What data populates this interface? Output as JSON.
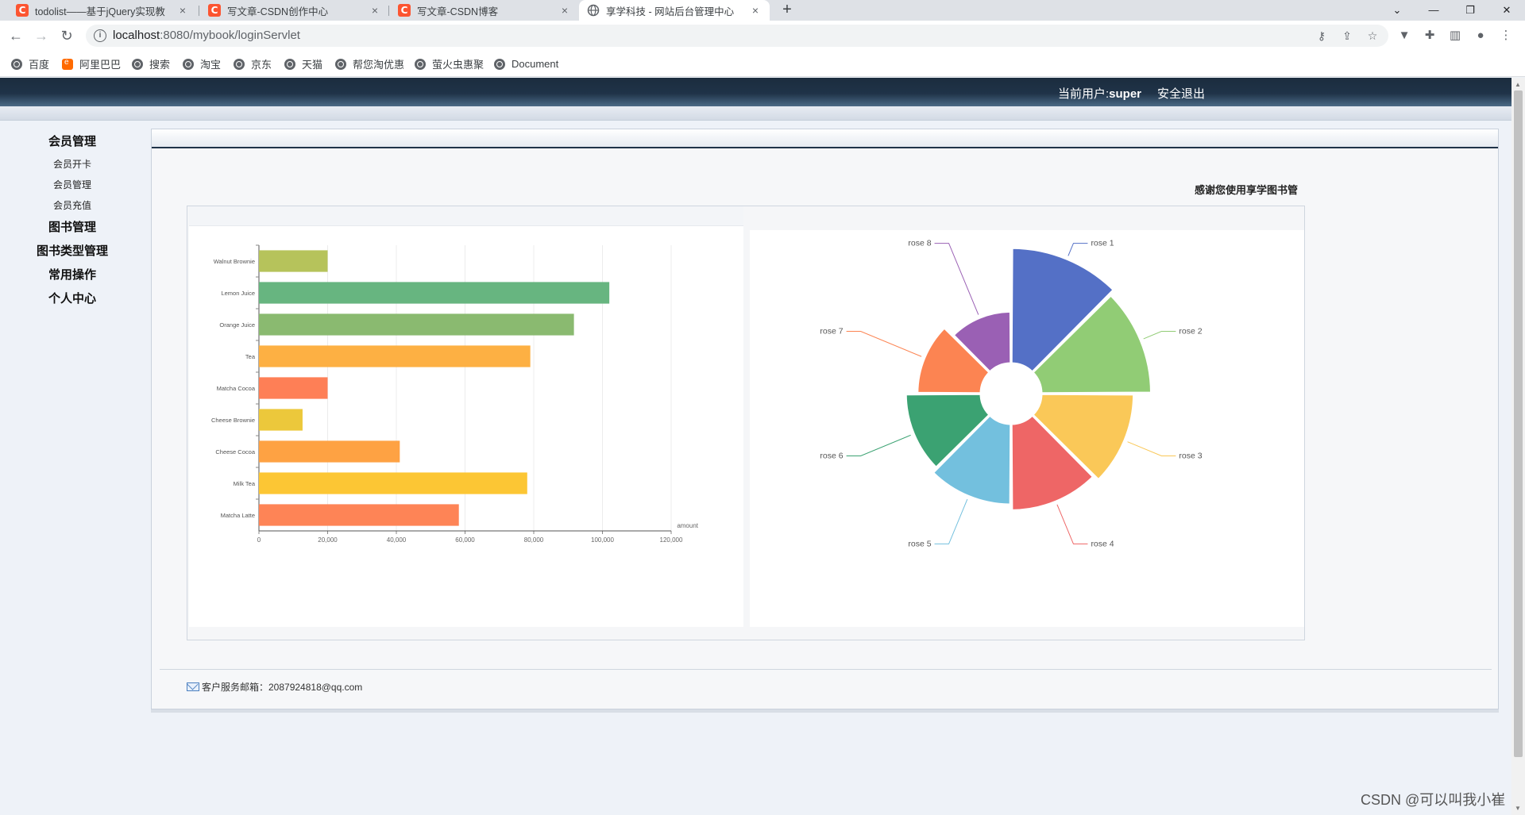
{
  "browser": {
    "tabs": [
      {
        "title": "todolist——基于jQuery实现教",
        "icon": "csdn-icon",
        "active": false
      },
      {
        "title": "写文章-CSDN创作中心",
        "icon": "csdn-icon",
        "active": false
      },
      {
        "title": "写文章-CSDN博客",
        "icon": "csdn-icon",
        "active": false
      },
      {
        "title": "享学科技 - 网站后台管理中心",
        "icon": "globe-icon",
        "active": true
      }
    ],
    "close_glyph": "×",
    "new_tab_glyph": "+",
    "url_host": "localhost",
    "url_rest": ":8080/mybook/loginServlet",
    "bookmarks": [
      "百度",
      "阿里巴巴",
      "搜索",
      "淘宝",
      "京东",
      "天猫",
      "帮您淘优惠",
      "萤火虫惠聚",
      "Document"
    ]
  },
  "header": {
    "user_prefix": "当前用户:",
    "user_name": "super",
    "logout": "安全退出"
  },
  "sidebar": {
    "groups": [
      {
        "label": "会员管理",
        "items": [
          "会员开卡",
          "会员管理",
          "会员充值"
        ]
      },
      {
        "label": "图书管理",
        "items": []
      },
      {
        "label": "图书类型管理",
        "items": []
      },
      {
        "label": "常用操作",
        "items": []
      },
      {
        "label": "个人中心",
        "items": []
      }
    ]
  },
  "main": {
    "welcome": "感谢您使用享学图书管"
  },
  "footer": {
    "email_label": "客户服务邮箱：2087924818@qq.com"
  },
  "watermark": "CSDN @可以叫我小崔",
  "chart_data": [
    {
      "type": "bar",
      "orientation": "horizontal",
      "categories": [
        "Walnut Brownie",
        "Lemon Juice",
        "Orange Juice",
        "Tea",
        "Matcha Cocoa",
        "Cheese Brownie",
        "Cheese Cocoa",
        "Milk Tea",
        "Matcha Latte"
      ],
      "values": [
        20000,
        102000,
        91700,
        79000,
        20000,
        12700,
        41000,
        78100,
        58200
      ],
      "colors": [
        "#b6c35b",
        "#67b580",
        "#8aba70",
        "#fdb043",
        "#fe7f56",
        "#ecc83b",
        "#fea243",
        "#fcc634",
        "#fe8456"
      ],
      "xlabel": "amount",
      "xlim": [
        0,
        120000
      ],
      "xticks": [
        0,
        20000,
        40000,
        60000,
        80000,
        100000,
        120000
      ],
      "xtick_labels": [
        "0",
        "20,000",
        "40,000",
        "60,000",
        "80,000",
        "100,000",
        "120,000"
      ],
      "grid": true
    },
    {
      "type": "pie",
      "rose_type": "radius",
      "labels": [
        "rose 1",
        "rose 2",
        "rose 3",
        "rose 4",
        "rose 5",
        "rose 6",
        "rose 7",
        "rose 8"
      ],
      "values": [
        40,
        38,
        32,
        30,
        28,
        26,
        22,
        18
      ],
      "colors": [
        "#5470c6",
        "#91cc75",
        "#fac858",
        "#ee6666",
        "#73c0de",
        "#3ba272",
        "#fc8452",
        "#9a60b4"
      ]
    }
  ]
}
